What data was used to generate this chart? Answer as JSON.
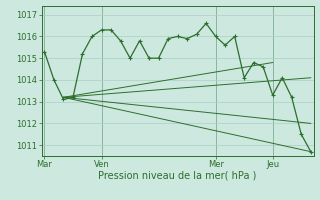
{
  "background_color": "#cce8df",
  "grid_color": "#aacfc6",
  "line_color": "#2d6e2d",
  "ylabel": "Pression niveau de la mer( hPa )",
  "ylim": [
    1010.5,
    1017.4
  ],
  "yticks": [
    1011,
    1012,
    1013,
    1014,
    1015,
    1016,
    1017
  ],
  "day_labels": [
    "Mar",
    "Ven",
    "Mer",
    "Jeu"
  ],
  "day_positions": [
    0,
    6,
    18,
    24
  ],
  "xlim": [
    -0.3,
    28.3
  ],
  "series1_x": [
    0,
    1,
    2,
    3,
    4,
    5,
    6,
    7,
    8,
    9,
    10,
    11,
    12,
    13,
    14,
    15,
    16,
    17,
    18,
    19,
    20,
    21,
    22,
    23,
    24,
    25,
    26,
    27,
    28
  ],
  "series1_y": [
    1015.3,
    1014.0,
    1013.1,
    1013.2,
    1015.2,
    1016.0,
    1016.3,
    1016.3,
    1015.8,
    1015.0,
    1015.8,
    1015.0,
    1015.0,
    1015.9,
    1016.0,
    1015.9,
    1016.1,
    1016.6,
    1016.0,
    1015.6,
    1016.0,
    1014.1,
    1014.8,
    1014.6,
    1013.3,
    1014.1,
    1013.2,
    1011.5,
    1010.7
  ],
  "trend_lines": [
    {
      "x": [
        2,
        28
      ],
      "y": [
        1013.2,
        1014.1
      ]
    },
    {
      "x": [
        2,
        28
      ],
      "y": [
        1013.2,
        1012.0
      ]
    },
    {
      "x": [
        2,
        28
      ],
      "y": [
        1013.2,
        1010.7
      ]
    },
    {
      "x": [
        2,
        24
      ],
      "y": [
        1013.2,
        1014.8
      ]
    }
  ],
  "ylabel_fontsize": 7,
  "tick_fontsize": 6
}
